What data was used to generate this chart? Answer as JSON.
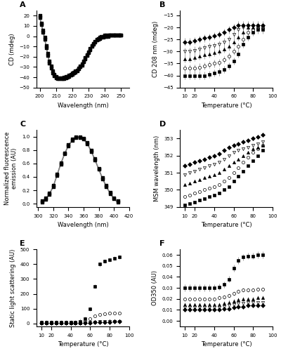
{
  "panel_A": {
    "label": "A",
    "xlabel": "Wavelength (nm)",
    "ylabel": "CD (mdeg)",
    "xlim": [
      198,
      255
    ],
    "ylim": [
      -50,
      25
    ],
    "yticks": [
      -50,
      -40,
      -30,
      -20,
      -10,
      0,
      10,
      20
    ],
    "xticks": [
      200,
      210,
      220,
      230,
      240,
      250
    ],
    "wavelengths": [
      200,
      201,
      202,
      203,
      204,
      205,
      206,
      207,
      208,
      209,
      210,
      211,
      212,
      213,
      214,
      215,
      216,
      217,
      218,
      219,
      220,
      221,
      222,
      223,
      224,
      225,
      226,
      227,
      228,
      229,
      230,
      231,
      232,
      233,
      234,
      235,
      236,
      237,
      238,
      239,
      240,
      241,
      242,
      243,
      244,
      245,
      246,
      247,
      248,
      249,
      250
    ],
    "cd_values": [
      19,
      12,
      5,
      -2,
      -10,
      -18,
      -25,
      -30,
      -35,
      -38,
      -40,
      -41,
      -41,
      -41,
      -41,
      -41,
      -40,
      -40,
      -39,
      -38,
      -37,
      -36,
      -35,
      -34,
      -32,
      -30,
      -28,
      -25,
      -22,
      -19,
      -16,
      -13,
      -10,
      -8,
      -6,
      -4,
      -3,
      -2,
      -1,
      -1,
      0,
      0,
      0,
      1,
      1,
      1,
      1,
      1,
      1,
      1,
      1
    ],
    "cd_scatter1": [
      18,
      11,
      4,
      -3,
      -11,
      -19,
      -26,
      -31,
      -36,
      -38.5,
      -40.5,
      -41.5,
      -41.5,
      -41.5,
      -41.5,
      -41,
      -40.5,
      -40,
      -39,
      -38,
      -37,
      -36,
      -35,
      -34,
      -32,
      -30,
      -28,
      -25,
      -22,
      -19,
      -16,
      -13,
      -10,
      -8,
      -6,
      -4,
      -3,
      -2,
      -1,
      -1,
      0,
      0,
      0,
      1,
      1,
      1,
      1,
      1,
      1,
      1,
      1
    ],
    "cd_scatter2": [
      20,
      13,
      6,
      -1,
      -9,
      -17,
      -24,
      -29,
      -34,
      -37.5,
      -39.5,
      -40.5,
      -40.5,
      -40.5,
      -40.5,
      -40,
      -39.5,
      -39,
      -38,
      -37,
      -36,
      -35,
      -34,
      -33,
      -31,
      -29,
      -27,
      -24,
      -21,
      -18,
      -15,
      -12,
      -9,
      -7,
      -5,
      -3,
      -2,
      -1,
      0,
      0,
      1,
      1,
      1,
      1,
      1,
      1,
      1,
      1,
      1,
      1,
      1
    ]
  },
  "panel_B": {
    "label": "B",
    "xlabel": "Temperature (°C)",
    "ylabel": "CD 208 nm (mdeg)",
    "xlim": [
      5,
      100
    ],
    "ylim": [
      -45,
      -13
    ],
    "yticks": [
      -45,
      -40,
      -35,
      -30,
      -25,
      -20,
      -15
    ],
    "xticks": [
      10,
      20,
      40,
      60,
      80,
      100
    ],
    "temps": [
      10,
      15,
      20,
      25,
      30,
      35,
      40,
      45,
      50,
      55,
      60,
      65,
      70,
      75,
      80,
      85,
      90
    ],
    "series": [
      [
        -40,
        -40,
        -40,
        -40,
        -40,
        -39.5,
        -39,
        -38.5,
        -37.5,
        -36,
        -34,
        -31,
        -27,
        -24,
        -22,
        -21,
        -21
      ],
      [
        -37,
        -37,
        -37,
        -36.5,
        -36,
        -35.5,
        -35,
        -34.5,
        -33.5,
        -32,
        -30,
        -28,
        -25,
        -22,
        -21,
        -20,
        -20
      ],
      [
        -33,
        -33,
        -32.5,
        -32,
        -31.5,
        -31,
        -30.5,
        -30,
        -29,
        -28,
        -26,
        -24,
        -22,
        -20,
        -20,
        -20,
        -20
      ],
      [
        -30,
        -30,
        -29.5,
        -29,
        -28.5,
        -28,
        -27.5,
        -27,
        -26,
        -25,
        -23,
        -21,
        -20,
        -19.5,
        -19.5,
        -20,
        -20
      ],
      [
        -26,
        -26,
        -25.5,
        -25,
        -24.5,
        -24,
        -23.5,
        -23,
        -22,
        -21,
        -20,
        -19,
        -19,
        -19,
        -19,
        -19,
        -19
      ]
    ],
    "series_errors": [
      1.5,
      1.5,
      1.5,
      1.5,
      1.5
    ],
    "markers": [
      "s",
      "o",
      "^",
      "v",
      "D"
    ],
    "fillstyles": [
      "full",
      "none",
      "full",
      "none",
      "full"
    ]
  },
  "panel_C": {
    "label": "C",
    "xlabel": "Wavelength (nm)",
    "ylabel": "Normalized fluorescence\nemission (AU)",
    "xlim": [
      298,
      420
    ],
    "ylim": [
      -0.05,
      1.1
    ],
    "yticks": [
      0.0,
      0.2,
      0.4,
      0.6,
      0.8,
      1.0
    ],
    "xticks": [
      300,
      320,
      340,
      360,
      380,
      400,
      420
    ],
    "wavelengths": [
      305,
      310,
      315,
      320,
      325,
      330,
      335,
      340,
      345,
      350,
      355,
      360,
      365,
      370,
      375,
      380,
      385,
      390,
      395,
      400,
      405
    ],
    "fl_values": [
      0.03,
      0.07,
      0.15,
      0.26,
      0.43,
      0.6,
      0.75,
      0.87,
      0.95,
      0.99,
      1.0,
      0.97,
      0.9,
      0.79,
      0.66,
      0.52,
      0.38,
      0.26,
      0.16,
      0.08,
      0.03
    ],
    "fl_scatter1": [
      0.02,
      0.06,
      0.14,
      0.25,
      0.42,
      0.59,
      0.74,
      0.86,
      0.94,
      0.985,
      0.99,
      0.96,
      0.89,
      0.78,
      0.65,
      0.51,
      0.37,
      0.25,
      0.15,
      0.07,
      0.02
    ],
    "fl_scatter2": [
      0.04,
      0.08,
      0.16,
      0.27,
      0.44,
      0.61,
      0.76,
      0.88,
      0.96,
      0.995,
      1.0,
      0.975,
      0.91,
      0.8,
      0.67,
      0.53,
      0.39,
      0.27,
      0.17,
      0.09,
      0.04
    ]
  },
  "panel_D": {
    "label": "D",
    "xlabel": "Temperature (°C)",
    "ylabel": "MSM wavelength (nm)",
    "xlim": [
      5,
      100
    ],
    "ylim": [
      349,
      353.5
    ],
    "yticks": [
      349.0,
      350.0,
      351.0,
      352.0,
      353.0
    ],
    "xticks": [
      10,
      20,
      40,
      60,
      80,
      100
    ],
    "temps": [
      10,
      15,
      20,
      25,
      30,
      35,
      40,
      45,
      50,
      55,
      60,
      65,
      70,
      75,
      80,
      85,
      90
    ],
    "series": [
      [
        349.1,
        349.2,
        349.3,
        349.4,
        349.5,
        349.6,
        349.7,
        349.8,
        350.0,
        350.2,
        350.5,
        350.8,
        351.1,
        351.4,
        351.7,
        352.0,
        352.3
      ],
      [
        349.6,
        349.7,
        349.8,
        349.9,
        350.0,
        350.1,
        350.2,
        350.3,
        350.5,
        350.7,
        351.0,
        351.3,
        351.6,
        351.9,
        352.2,
        352.4,
        352.6
      ],
      [
        350.3,
        350.4,
        350.5,
        350.6,
        350.7,
        350.8,
        350.9,
        351.0,
        351.2,
        351.4,
        351.6,
        351.8,
        352.0,
        352.2,
        352.4,
        352.5,
        352.6
      ],
      [
        350.9,
        351.0,
        351.1,
        351.2,
        351.3,
        351.4,
        351.5,
        351.6,
        351.8,
        352.0,
        352.2,
        352.3,
        352.4,
        352.5,
        352.6,
        352.7,
        352.8
      ],
      [
        351.4,
        351.5,
        351.6,
        351.7,
        351.8,
        351.9,
        352.0,
        352.1,
        352.3,
        352.5,
        352.6,
        352.7,
        352.8,
        352.9,
        353.0,
        353.1,
        353.2
      ]
    ],
    "series_errors": [
      0.05,
      0.05,
      0.05,
      0.05,
      0.05
    ],
    "markers": [
      "s",
      "o",
      "^",
      "v",
      "D"
    ],
    "fillstyles": [
      "full",
      "none",
      "full",
      "none",
      "full"
    ]
  },
  "panel_E": {
    "label": "E",
    "xlabel": "Temperature (°C)",
    "ylabel": "Static light scattering (AU)",
    "xlim": [
      5,
      100
    ],
    "ylim": [
      -20,
      500
    ],
    "yticks": [
      0,
      100,
      200,
      300,
      400,
      500
    ],
    "xticks": [
      10,
      20,
      40,
      60,
      80,
      100
    ],
    "temps": [
      10,
      15,
      20,
      25,
      30,
      35,
      40,
      45,
      50,
      55,
      60,
      65,
      70,
      75,
      80,
      85,
      90
    ],
    "series": [
      [
        10,
        10,
        10,
        10,
        10,
        10,
        10,
        10,
        15,
        30,
        100,
        250,
        400,
        420,
        430,
        440,
        450
      ],
      [
        8,
        8,
        8,
        8,
        8,
        8,
        8,
        8,
        10,
        15,
        30,
        50,
        60,
        65,
        68,
        70,
        72
      ],
      [
        5,
        5,
        5,
        5,
        5,
        5,
        5,
        5,
        6,
        8,
        10,
        12,
        14,
        15,
        16,
        17,
        18
      ],
      [
        4,
        4,
        4,
        4,
        4,
        4,
        4,
        4,
        5,
        6,
        8,
        10,
        11,
        12,
        12,
        13,
        13
      ],
      [
        3,
        3,
        3,
        3,
        3,
        3,
        3,
        3,
        4,
        5,
        6,
        8,
        9,
        10,
        10,
        11,
        11
      ]
    ],
    "series_errors": [
      15,
      5,
      2,
      1.5,
      1
    ],
    "markers": [
      "s",
      "o",
      "^",
      "v",
      "D"
    ],
    "fillstyles": [
      "full",
      "none",
      "full",
      "none",
      "full"
    ]
  },
  "panel_F": {
    "label": "F",
    "xlabel": "Temperature (°C)",
    "ylabel": "OD350 (AU)",
    "xlim": [
      5,
      100
    ],
    "ylim": [
      -0.005,
      0.065
    ],
    "yticks": [
      0.0,
      0.01,
      0.02,
      0.03,
      0.04,
      0.05,
      0.06
    ],
    "xticks": [
      10,
      20,
      40,
      60,
      80,
      100
    ],
    "temps": [
      10,
      15,
      20,
      25,
      30,
      35,
      40,
      45,
      50,
      55,
      60,
      65,
      70,
      75,
      80,
      85,
      90
    ],
    "series": [
      [
        0.03,
        0.03,
        0.03,
        0.03,
        0.03,
        0.03,
        0.03,
        0.031,
        0.033,
        0.038,
        0.048,
        0.055,
        0.058,
        0.059,
        0.059,
        0.06,
        0.06
      ],
      [
        0.02,
        0.02,
        0.02,
        0.02,
        0.02,
        0.02,
        0.02,
        0.021,
        0.022,
        0.023,
        0.025,
        0.027,
        0.028,
        0.028,
        0.028,
        0.029,
        0.029
      ],
      [
        0.015,
        0.015,
        0.015,
        0.015,
        0.015,
        0.015,
        0.015,
        0.015,
        0.016,
        0.017,
        0.018,
        0.019,
        0.02,
        0.02,
        0.02,
        0.021,
        0.021
      ],
      [
        0.012,
        0.012,
        0.012,
        0.012,
        0.012,
        0.012,
        0.012,
        0.012,
        0.013,
        0.014,
        0.015,
        0.016,
        0.016,
        0.017,
        0.017,
        0.017,
        0.017
      ],
      [
        0.01,
        0.01,
        0.01,
        0.01,
        0.01,
        0.01,
        0.01,
        0.01,
        0.011,
        0.011,
        0.012,
        0.013,
        0.013,
        0.014,
        0.014,
        0.014,
        0.014
      ]
    ],
    "series_errors": [
      0.003,
      0.002,
      0.002,
      0.001,
      0.001
    ],
    "markers": [
      "s",
      "o",
      "^",
      "v",
      "D"
    ],
    "fillstyles": [
      "full",
      "none",
      "full",
      "none",
      "full"
    ]
  }
}
